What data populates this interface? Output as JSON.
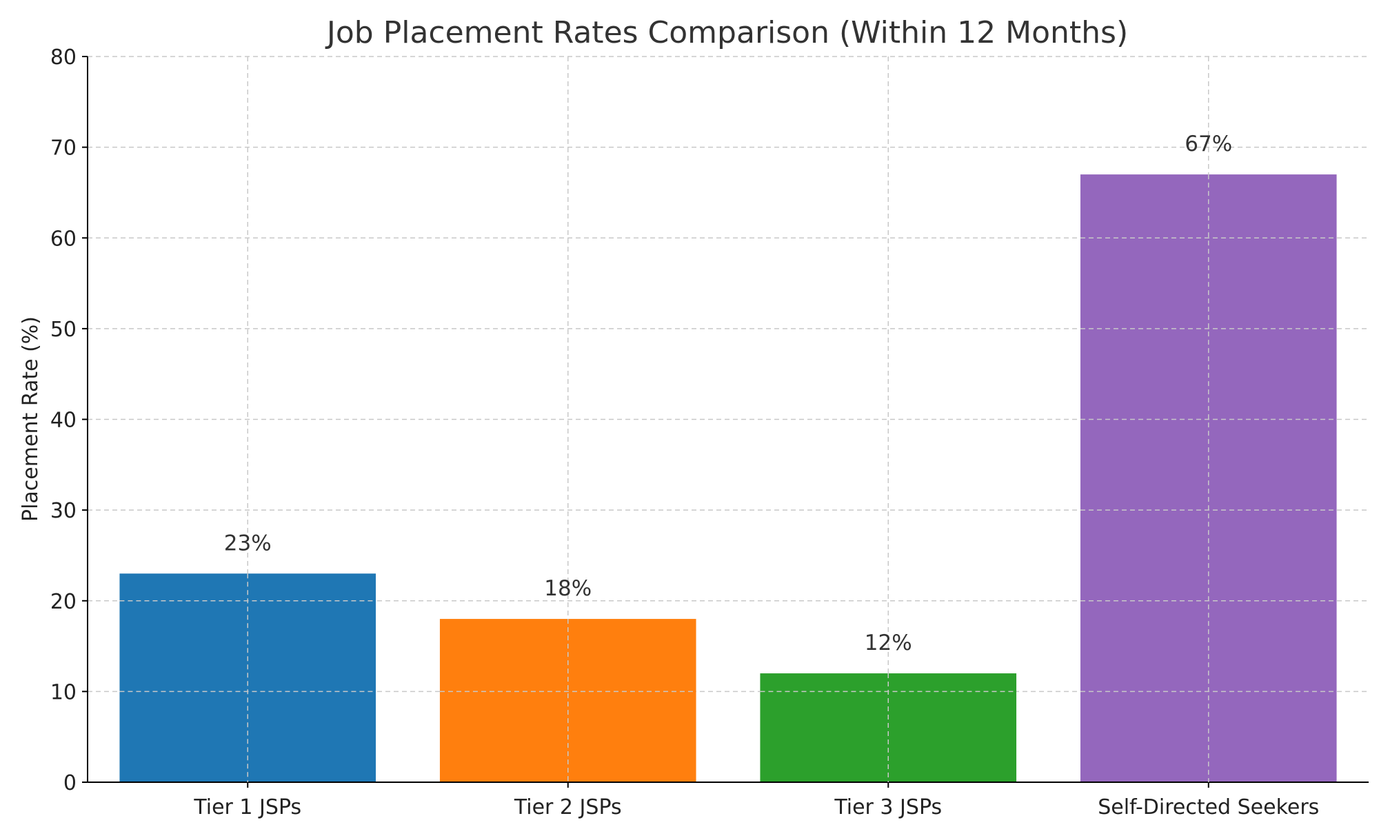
{
  "chart_data": {
    "type": "bar",
    "title": "Job Placement Rates Comparison (Within 12 Months)",
    "xlabel": "",
    "ylabel": "Placement Rate (%)",
    "categories": [
      "Tier 1 JSPs",
      "Tier 2 JSPs",
      "Tier 3 JSPs",
      "Self-Directed Seekers"
    ],
    "values": [
      23,
      18,
      12,
      67
    ],
    "data_labels": [
      "23%",
      "18%",
      "12%",
      "67%"
    ],
    "colors": [
      "#1f77b4",
      "#ff7f0e",
      "#2ca02c",
      "#9467bd"
    ],
    "ylim": [
      0,
      80
    ],
    "yticks": [
      0,
      10,
      20,
      30,
      40,
      50,
      60,
      70,
      80
    ],
    "grid": true
  }
}
